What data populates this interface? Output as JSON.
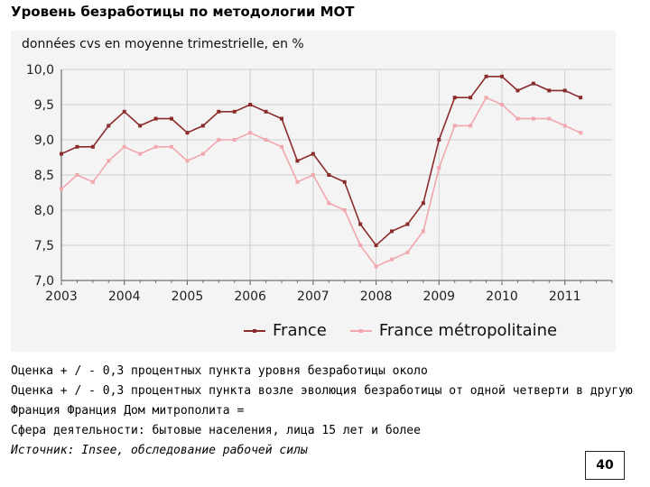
{
  "slide": {
    "title": "Уровень безработицы по методологии МОТ",
    "page_number": "40"
  },
  "notes": [
    "Оценка + / - 0,3 процентных пункта уровня безработицы около",
    "Оценка + / - 0,3 процентных пункта возле эволюция безработицы от одной четверти в другую",
    "Франция Франция Дом митрополита =",
    "Сфера деятельности: бытовые населения, лица 15 лет и более",
    "Источник: Insee, обследование рабочей силы"
  ],
  "chart_data": {
    "type": "line",
    "subtitle": "données cvs en moyenne trimestrielle, en %",
    "x_ticks": [
      "2003",
      "2004",
      "2005",
      "2006",
      "2007",
      "2008",
      "2009",
      "2010",
      "2011"
    ],
    "y_ticks": [
      "7,0",
      "7,5",
      "8,0",
      "8,5",
      "9,0",
      "9,5",
      "10,0"
    ],
    "ylim": [
      7.0,
      10.0
    ],
    "xlim": [
      2003.0,
      2011.75
    ],
    "grid": true,
    "legend_position": "bottom",
    "series": [
      {
        "name": "France",
        "color": "#8b2c2c",
        "x": [
          2003.0,
          2003.25,
          2003.5,
          2003.75,
          2004.0,
          2004.25,
          2004.5,
          2004.75,
          2005.0,
          2005.25,
          2005.5,
          2005.75,
          2006.0,
          2006.25,
          2006.5,
          2006.75,
          2007.0,
          2007.25,
          2007.5,
          2007.75,
          2008.0,
          2008.25,
          2008.5,
          2008.75,
          2009.0,
          2009.25,
          2009.5,
          2009.75,
          2010.0,
          2010.25,
          2010.5,
          2010.75,
          2011.0,
          2011.25
        ],
        "y": [
          8.8,
          8.9,
          8.9,
          9.2,
          9.4,
          9.2,
          9.3,
          9.3,
          9.1,
          9.2,
          9.4,
          9.4,
          9.5,
          9.4,
          9.3,
          8.7,
          8.8,
          8.5,
          8.4,
          7.8,
          7.5,
          7.7,
          7.8,
          8.1,
          9.0,
          9.6,
          9.6,
          9.9,
          9.9,
          9.7,
          9.8,
          9.7,
          9.7,
          9.6
        ]
      },
      {
        "name": "France métropolitaine",
        "color": "#f2a7ae",
        "x": [
          2003.0,
          2003.25,
          2003.5,
          2003.75,
          2004.0,
          2004.25,
          2004.5,
          2004.75,
          2005.0,
          2005.25,
          2005.5,
          2005.75,
          2006.0,
          2006.25,
          2006.5,
          2006.75,
          2007.0,
          2007.25,
          2007.5,
          2007.75,
          2008.0,
          2008.25,
          2008.5,
          2008.75,
          2009.0,
          2009.25,
          2009.5,
          2009.75,
          2010.0,
          2010.25,
          2010.5,
          2010.75,
          2011.0,
          2011.25
        ],
        "y": [
          8.3,
          8.5,
          8.4,
          8.7,
          8.9,
          8.8,
          8.9,
          8.9,
          8.7,
          8.8,
          9.0,
          9.0,
          9.1,
          9.0,
          8.9,
          8.4,
          8.5,
          8.1,
          8.0,
          7.5,
          7.2,
          7.3,
          7.4,
          7.7,
          8.6,
          9.2,
          9.2,
          9.6,
          9.5,
          9.3,
          9.3,
          9.3,
          9.2,
          9.1
        ]
      }
    ]
  }
}
